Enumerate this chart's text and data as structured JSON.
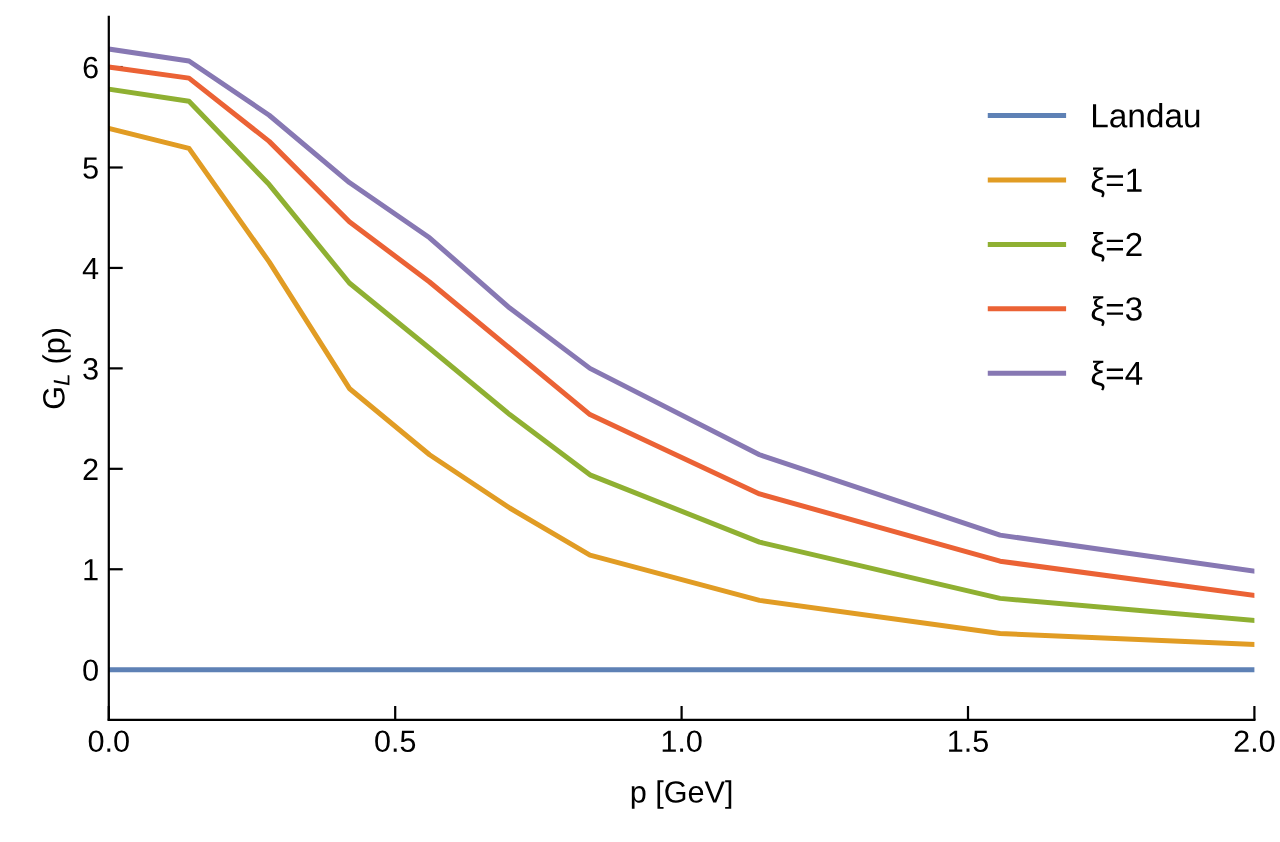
{
  "chart_data": {
    "type": "line",
    "xlabel": "p [GeV]",
    "ylabel": "G$_{L}$ (p)",
    "x": [
      0,
      0.14,
      0.28,
      0.42,
      0.56,
      0.7,
      0.84,
      1.136,
      1.556,
      2.0
    ],
    "series": [
      {
        "name": "Landau",
        "color": "#5e81b5",
        "values": [
          0,
          0,
          0,
          0,
          0,
          0,
          0,
          0,
          0,
          0
        ]
      },
      {
        "name": "ξ=1",
        "color": "#e19c24",
        "values": [
          5.39,
          5.19,
          4.06,
          2.8,
          2.14,
          1.61,
          1.14,
          0.69,
          0.36,
          0.25
        ]
      },
      {
        "name": "ξ=2",
        "color": "#8fb032",
        "values": [
          5.78,
          5.66,
          4.83,
          3.85,
          3.2,
          2.54,
          1.94,
          1.27,
          0.71,
          0.49
        ]
      },
      {
        "name": "ξ=3",
        "color": "#eb6235",
        "values": [
          6.0,
          5.89,
          5.26,
          4.46,
          3.86,
          3.2,
          2.54,
          1.75,
          1.08,
          0.74
        ]
      },
      {
        "name": "ξ=4",
        "color": "#8778b3",
        "values": [
          6.18,
          6.06,
          5.52,
          4.85,
          4.3,
          3.6,
          3.0,
          2.14,
          1.34,
          0.98
        ]
      }
    ],
    "xlim": [
      0,
      2.0
    ],
    "xticks": [
      {
        "value": 0,
        "label": "0.0"
      },
      0.5,
      {
        "value": 1,
        "label": "1.0"
      },
      1.5,
      {
        "value": 2,
        "label": "2.0"
      }
    ],
    "ylim": [
      -0.5,
      6.5
    ],
    "yticks": [
      0,
      1,
      2,
      3,
      4,
      5,
      6
    ],
    "grid": false,
    "legend": "top right",
    "line_style": "solid",
    "marker": "none"
  }
}
